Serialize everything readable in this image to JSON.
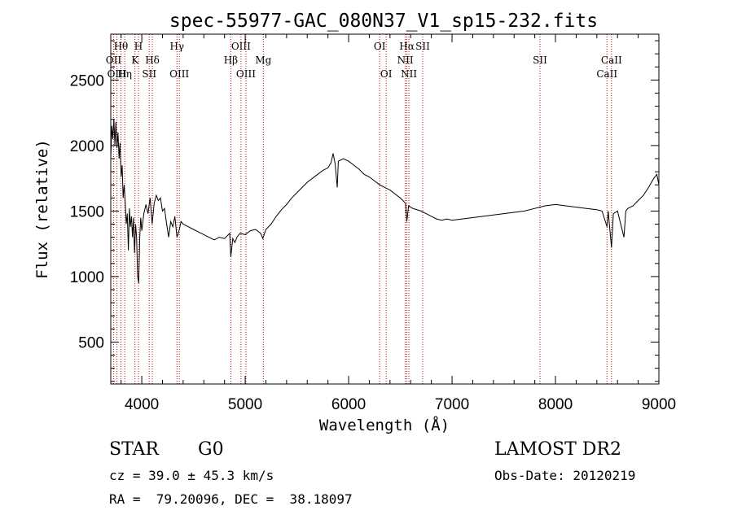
{
  "title": "spec-55977-GAC_080N37_V1_sp15-232.fits",
  "info": {
    "class_type": "STAR",
    "subclass": "G0",
    "survey": "LAMOST DR2",
    "redshift": "cz = 39.0 ± 45.3 km/s",
    "obs_date": "Obs-Date: 20120219",
    "coords": "RA =  79.20096, DEC =  38.18097"
  },
  "chart_data": {
    "type": "line",
    "title": "spec-55977-GAC_080N37_V1_sp15-232.fits",
    "xlabel": "Wavelength (Å)",
    "ylabel": "Flux (relative)",
    "xlim": [
      3700,
      9000
    ],
    "ylim": [
      180,
      2850
    ],
    "grid": false,
    "x_ticks": [
      4000,
      5000,
      6000,
      7000,
      8000,
      9000
    ],
    "y_ticks": [
      500,
      1000,
      1500,
      2000,
      2500
    ],
    "series_color": "#000000",
    "line_color": "#cc0000",
    "series": [
      {
        "points": [
          [
            3700,
            1900
          ],
          [
            3710,
            2150
          ],
          [
            3720,
            2050
          ],
          [
            3730,
            2200
          ],
          [
            3740,
            2000
          ],
          [
            3750,
            2180
          ],
          [
            3760,
            1980
          ],
          [
            3770,
            2100
          ],
          [
            3780,
            1900
          ],
          [
            3790,
            2020
          ],
          [
            3800,
            1760
          ],
          [
            3810,
            1850
          ],
          [
            3820,
            1600
          ],
          [
            3830,
            1700
          ],
          [
            3840,
            1560
          ],
          [
            3850,
            1400
          ],
          [
            3860,
            1480
          ],
          [
            3870,
            1200
          ],
          [
            3880,
            1520
          ],
          [
            3890,
            1380
          ],
          [
            3900,
            1460
          ],
          [
            3910,
            1300
          ],
          [
            3920,
            1450
          ],
          [
            3930,
            1180
          ],
          [
            3940,
            1400
          ],
          [
            3950,
            1300
          ],
          [
            3960,
            1000
          ],
          [
            3970,
            950
          ],
          [
            3980,
            1300
          ],
          [
            3990,
            1450
          ],
          [
            4000,
            1350
          ],
          [
            4020,
            1480
          ],
          [
            4040,
            1550
          ],
          [
            4060,
            1480
          ],
          [
            4080,
            1600
          ],
          [
            4100,
            1400
          ],
          [
            4120,
            1560
          ],
          [
            4140,
            1620
          ],
          [
            4160,
            1580
          ],
          [
            4180,
            1600
          ],
          [
            4200,
            1500
          ],
          [
            4220,
            1520
          ],
          [
            4240,
            1400
          ],
          [
            4260,
            1300
          ],
          [
            4280,
            1420
          ],
          [
            4300,
            1380
          ],
          [
            4320,
            1460
          ],
          [
            4340,
            1300
          ],
          [
            4360,
            1350
          ],
          [
            4380,
            1420
          ],
          [
            4400,
            1400
          ],
          [
            4450,
            1380
          ],
          [
            4500,
            1360
          ],
          [
            4550,
            1340
          ],
          [
            4600,
            1320
          ],
          [
            4650,
            1300
          ],
          [
            4700,
            1280
          ],
          [
            4750,
            1300
          ],
          [
            4800,
            1290
          ],
          [
            4850,
            1330
          ],
          [
            4861,
            1150
          ],
          [
            4880,
            1290
          ],
          [
            4900,
            1260
          ],
          [
            4920,
            1300
          ],
          [
            4950,
            1330
          ],
          [
            5000,
            1320
          ],
          [
            5050,
            1350
          ],
          [
            5100,
            1360
          ],
          [
            5150,
            1330
          ],
          [
            5170,
            1290
          ],
          [
            5200,
            1360
          ],
          [
            5250,
            1400
          ],
          [
            5300,
            1460
          ],
          [
            5350,
            1510
          ],
          [
            5400,
            1550
          ],
          [
            5450,
            1600
          ],
          [
            5500,
            1640
          ],
          [
            5550,
            1680
          ],
          [
            5600,
            1720
          ],
          [
            5650,
            1750
          ],
          [
            5700,
            1780
          ],
          [
            5750,
            1810
          ],
          [
            5800,
            1830
          ],
          [
            5830,
            1870
          ],
          [
            5850,
            1940
          ],
          [
            5870,
            1860
          ],
          [
            5890,
            1680
          ],
          [
            5900,
            1880
          ],
          [
            5950,
            1900
          ],
          [
            6000,
            1880
          ],
          [
            6050,
            1850
          ],
          [
            6100,
            1820
          ],
          [
            6150,
            1780
          ],
          [
            6200,
            1760
          ],
          [
            6250,
            1730
          ],
          [
            6300,
            1700
          ],
          [
            6350,
            1680
          ],
          [
            6400,
            1660
          ],
          [
            6450,
            1630
          ],
          [
            6500,
            1600
          ],
          [
            6550,
            1560
          ],
          [
            6563,
            1420
          ],
          [
            6580,
            1540
          ],
          [
            6620,
            1520
          ],
          [
            6700,
            1500
          ],
          [
            6750,
            1480
          ],
          [
            6800,
            1460
          ],
          [
            6850,
            1440
          ],
          [
            6900,
            1430
          ],
          [
            6950,
            1440
          ],
          [
            7000,
            1430
          ],
          [
            7100,
            1440
          ],
          [
            7200,
            1450
          ],
          [
            7300,
            1460
          ],
          [
            7400,
            1470
          ],
          [
            7500,
            1480
          ],
          [
            7600,
            1490
          ],
          [
            7700,
            1500
          ],
          [
            7800,
            1520
          ],
          [
            7850,
            1530
          ],
          [
            7900,
            1540
          ],
          [
            8000,
            1550
          ],
          [
            8100,
            1540
          ],
          [
            8200,
            1530
          ],
          [
            8300,
            1520
          ],
          [
            8400,
            1510
          ],
          [
            8450,
            1500
          ],
          [
            8498,
            1380
          ],
          [
            8510,
            1500
          ],
          [
            8542,
            1220
          ],
          [
            8560,
            1480
          ],
          [
            8600,
            1500
          ],
          [
            8662,
            1300
          ],
          [
            8680,
            1500
          ],
          [
            8700,
            1520
          ],
          [
            8750,
            1540
          ],
          [
            8800,
            1580
          ],
          [
            8850,
            1620
          ],
          [
            8900,
            1680
          ],
          [
            8950,
            1750
          ],
          [
            8980,
            1780
          ],
          [
            9000,
            1700
          ]
        ]
      }
    ],
    "emission_lines": [
      {
        "label": "Hθ",
        "wavelength": 3798,
        "row": 0
      },
      {
        "label": "OII",
        "wavelength": 3727,
        "row": 1
      },
      {
        "label": "OIII",
        "wavelength": 3760,
        "row": 2
      },
      {
        "label": "Hη",
        "wavelength": 3835,
        "row": 2
      },
      {
        "label": "H",
        "wavelength": 3968,
        "row": 0
      },
      {
        "label": "K",
        "wavelength": 3934,
        "row": 1
      },
      {
        "label": "Hδ",
        "wavelength": 4102,
        "row": 1
      },
      {
        "label": "SII",
        "wavelength": 4072,
        "row": 2
      },
      {
        "label": "Hγ",
        "wavelength": 4340,
        "row": 0
      },
      {
        "label": "OIII",
        "wavelength": 4363,
        "row": 2
      },
      {
        "label": "OIII",
        "wavelength": 4959,
        "row": 0
      },
      {
        "label": "Hβ",
        "wavelength": 4861,
        "row": 1
      },
      {
        "label": "OIII",
        "wavelength": 5007,
        "row": 2
      },
      {
        "label": "Mg",
        "wavelength": 5175,
        "row": 1
      },
      {
        "label": "OI",
        "wavelength": 6300,
        "row": 0
      },
      {
        "label": "OI",
        "wavelength": 6363,
        "row": 2
      },
      {
        "label": "Hα",
        "wavelength": 6563,
        "row": 0
      },
      {
        "label": "SII",
        "wavelength": 6716,
        "row": 0
      },
      {
        "label": "NII",
        "wavelength": 6548,
        "row": 1
      },
      {
        "label": "NII",
        "wavelength": 6583,
        "row": 2
      },
      {
        "label": "SII",
        "wavelength": 7850,
        "row": 1
      },
      {
        "label": "CaII",
        "wavelength": 8542,
        "row": 1
      },
      {
        "label": "CaII",
        "wavelength": 8498,
        "row": 2
      }
    ]
  }
}
